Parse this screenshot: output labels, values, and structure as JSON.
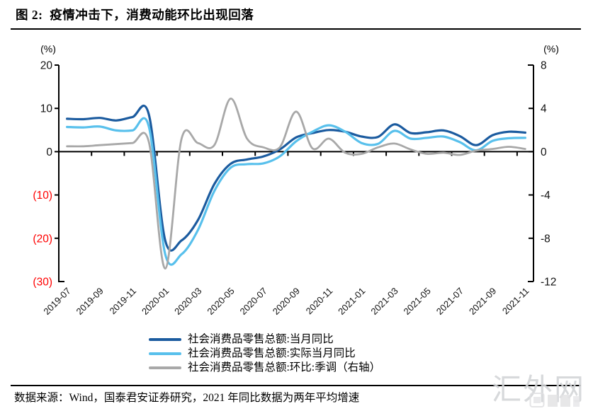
{
  "header": {
    "title": "图 2:  疫情冲击下，消费动能环比出现回落"
  },
  "footer": {
    "source_note": "数据来源：Wind，国泰君安证券研究，2021 年同比数据为两年平均增速"
  },
  "watermark": {
    "text": "汇外网"
  },
  "chart_data": {
    "type": "line",
    "grid": false,
    "legend_position": "bottom",
    "left_axis": {
      "unit": "(%)",
      "min": -30,
      "max": 20,
      "ticks": [
        {
          "label": "20",
          "value": 20
        },
        {
          "label": "10",
          "value": 10
        },
        {
          "label": "0",
          "value": 0
        },
        {
          "label": "(10)",
          "value": -10
        },
        {
          "label": "(20)",
          "value": -20
        },
        {
          "label": "(30)",
          "value": -30
        }
      ],
      "negative_label_color": "#ff0000"
    },
    "right_axis": {
      "unit": "(%)",
      "min": -12,
      "max": 8,
      "ticks": [
        {
          "label": "8",
          "value": 8
        },
        {
          "label": "4",
          "value": 4
        },
        {
          "label": "0",
          "value": 0
        },
        {
          "label": "-4",
          "value": -4
        },
        {
          "label": "-8",
          "value": -8
        },
        {
          "label": "-12",
          "value": -12
        }
      ]
    },
    "x_tick_labels": [
      "2019-07",
      "2019-09",
      "2019-11",
      "2020-01",
      "2020-03",
      "2020-05",
      "2020-07",
      "2020-09",
      "2020-11",
      "2021-01",
      "2021-03",
      "2021-05",
      "2021-07",
      "2021-09",
      "2021-11"
    ],
    "x_months": [
      "2019-07",
      "2019-08",
      "2019-09",
      "2019-10",
      "2019-11",
      "2019-12",
      "2020-01",
      "2020-02",
      "2020-03",
      "2020-04",
      "2020-05",
      "2020-06",
      "2020-07",
      "2020-08",
      "2020-09",
      "2020-10",
      "2020-11",
      "2020-12",
      "2021-01",
      "2021-02",
      "2021-03",
      "2021-04",
      "2021-05",
      "2021-06",
      "2021-07",
      "2021-08",
      "2021-09",
      "2021-10",
      "2021-11"
    ],
    "series": [
      {
        "name": "社会消费品零售总额:当月同比",
        "axis": "left",
        "color": "#1b5b9f",
        "values": [
          7.6,
          7.5,
          7.8,
          7.2,
          8.0,
          8.6,
          -20.5,
          -20.5,
          -15.8,
          -7.5,
          -2.8,
          -1.8,
          -1.1,
          0.5,
          3.3,
          4.3,
          5.0,
          4.6,
          3.5,
          3.4,
          6.3,
          4.3,
          4.5,
          4.9,
          3.6,
          1.5,
          3.8,
          4.6,
          4.4
        ]
      },
      {
        "name": "社会消费品零售总额:实际当月同比",
        "axis": "left",
        "color": "#58c0ec",
        "values": [
          5.7,
          5.6,
          5.8,
          4.9,
          4.9,
          5.8,
          -23.7,
          -23.7,
          -18.1,
          -9.1,
          -3.7,
          -2.9,
          -2.7,
          -1.1,
          2.4,
          4.6,
          6.1,
          4.6,
          2.0,
          1.8,
          4.8,
          3.0,
          3.2,
          3.5,
          2.2,
          0.3,
          2.5,
          3.1,
          3.2
        ]
      },
      {
        "name": "社会消费品零售总额:环比:季调（右轴）",
        "axis": "right",
        "color": "#a8a8a8",
        "values": [
          0.5,
          0.5,
          0.6,
          0.7,
          0.8,
          0.9,
          -10.8,
          1.2,
          0.8,
          0.6,
          4.9,
          1.2,
          0.4,
          0.4,
          3.7,
          0.3,
          1.2,
          -0.1,
          -0.2,
          0.4,
          0.75,
          0.2,
          -0.2,
          -0.1,
          -0.3,
          0.1,
          0.25,
          0.45,
          0.25
        ]
      }
    ]
  }
}
